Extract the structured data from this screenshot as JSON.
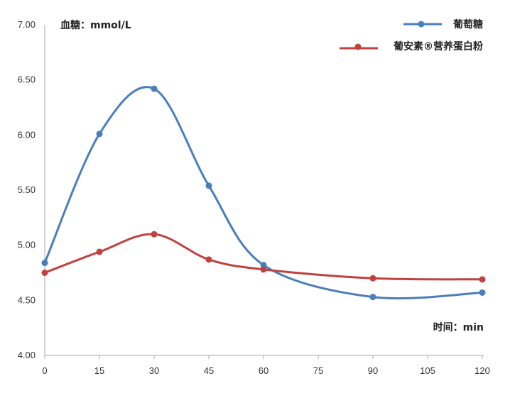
{
  "chart_data": {
    "type": "line",
    "ylabel": "血糖：mmol/L",
    "xlabel": "时间：min",
    "ylim": [
      4.0,
      7.0
    ],
    "yticks": [
      "7.00",
      "6.50",
      "6.00",
      "5.50",
      "5.00",
      "4.50",
      "4.00"
    ],
    "xticks": [
      0,
      15,
      30,
      45,
      60,
      75,
      90,
      105,
      120
    ],
    "xlim": [
      0,
      120
    ],
    "grid": false,
    "legend_position": "top-right",
    "series": [
      {
        "name": "葡萄糖",
        "color": "#4a7ebb",
        "x": [
          0,
          15,
          30,
          45,
          60,
          90,
          120
        ],
        "values": [
          4.84,
          6.01,
          6.42,
          5.54,
          4.82,
          4.53,
          4.57
        ]
      },
      {
        "name": "葡安素®营养蛋白粉",
        "color": "#c0413e",
        "x": [
          0,
          15,
          30,
          45,
          60,
          90,
          120
        ],
        "values": [
          4.75,
          4.94,
          5.1,
          4.87,
          4.78,
          4.7,
          4.69
        ]
      }
    ]
  }
}
